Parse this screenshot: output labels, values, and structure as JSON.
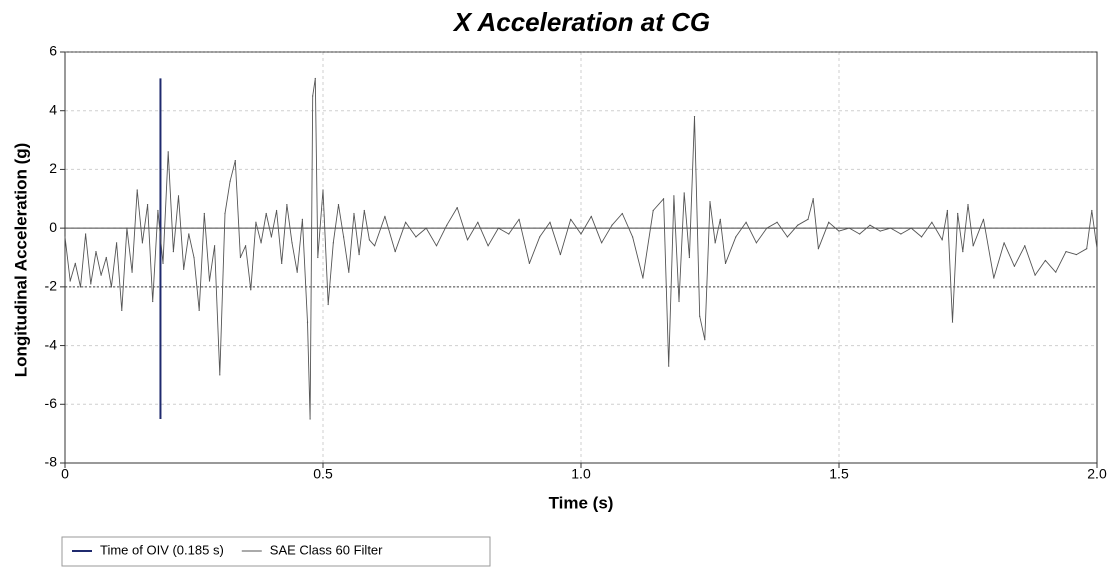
{
  "chart_data": {
    "type": "line",
    "title": "X Acceleration at CG",
    "xlabel": "Time (s)",
    "ylabel": "Longitudinal Acceleration (g)",
    "xlim": [
      0,
      2.0
    ],
    "ylim": [
      -8,
      6
    ],
    "x_ticks": [
      0,
      0.5,
      1.0,
      1.5,
      2.0
    ],
    "x_tick_labels": [
      "0",
      "0.5",
      "1.0",
      "1.5",
      "2.0"
    ],
    "y_ticks": [
      -8,
      -6,
      -4,
      -2,
      0,
      2,
      4,
      6
    ],
    "y_tick_labels": [
      "-8",
      "-6",
      "-4",
      "-2",
      "0",
      "2",
      "4",
      "6"
    ],
    "grid": true,
    "reference_lines": [
      0,
      -2
    ],
    "legend_position": "bottom-left",
    "series": [
      {
        "name": "Time of OIV (0.185 s)",
        "color": "#1f2a6e",
        "type": "vertical-line",
        "x": [
          0.185,
          0.185
        ],
        "y": [
          -6.5,
          5.1
        ]
      },
      {
        "name": "SAE Class 60 Filter",
        "color": "#555555",
        "type": "line",
        "x": [
          0.0,
          0.01,
          0.02,
          0.03,
          0.04,
          0.05,
          0.06,
          0.07,
          0.08,
          0.09,
          0.1,
          0.11,
          0.12,
          0.13,
          0.14,
          0.15,
          0.16,
          0.17,
          0.18,
          0.19,
          0.2,
          0.21,
          0.22,
          0.23,
          0.24,
          0.25,
          0.26,
          0.27,
          0.28,
          0.29,
          0.3,
          0.31,
          0.32,
          0.33,
          0.34,
          0.35,
          0.36,
          0.37,
          0.38,
          0.39,
          0.4,
          0.41,
          0.42,
          0.43,
          0.44,
          0.45,
          0.46,
          0.47,
          0.475,
          0.48,
          0.485,
          0.49,
          0.5,
          0.51,
          0.52,
          0.53,
          0.54,
          0.55,
          0.56,
          0.57,
          0.58,
          0.59,
          0.6,
          0.62,
          0.64,
          0.66,
          0.68,
          0.7,
          0.72,
          0.74,
          0.76,
          0.78,
          0.8,
          0.82,
          0.84,
          0.86,
          0.88,
          0.9,
          0.92,
          0.94,
          0.96,
          0.98,
          1.0,
          1.02,
          1.04,
          1.06,
          1.08,
          1.1,
          1.12,
          1.14,
          1.16,
          1.17,
          1.18,
          1.19,
          1.2,
          1.21,
          1.22,
          1.23,
          1.24,
          1.25,
          1.26,
          1.27,
          1.28,
          1.3,
          1.32,
          1.34,
          1.36,
          1.38,
          1.4,
          1.42,
          1.44,
          1.45,
          1.46,
          1.48,
          1.5,
          1.52,
          1.54,
          1.56,
          1.58,
          1.6,
          1.62,
          1.64,
          1.66,
          1.68,
          1.7,
          1.71,
          1.72,
          1.73,
          1.74,
          1.75,
          1.76,
          1.78,
          1.8,
          1.82,
          1.84,
          1.86,
          1.88,
          1.9,
          1.92,
          1.94,
          1.96,
          1.98,
          1.99,
          2.0
        ],
        "y": [
          -0.3,
          -1.8,
          -1.2,
          -2.0,
          -0.2,
          -1.9,
          -0.8,
          -1.6,
          -1.0,
          -2.0,
          -0.5,
          -2.8,
          0.0,
          -1.5,
          1.3,
          -0.5,
          0.8,
          -2.5,
          0.6,
          -1.2,
          2.6,
          -0.8,
          1.1,
          -1.4,
          -0.2,
          -1.0,
          -2.8,
          0.5,
          -1.8,
          -0.6,
          -5.0,
          0.5,
          1.6,
          2.3,
          -1.0,
          -0.6,
          -2.1,
          0.2,
          -0.5,
          0.5,
          -0.3,
          0.6,
          -1.2,
          0.8,
          -0.5,
          -1.5,
          0.3,
          -3.2,
          -6.5,
          4.5,
          5.1,
          -1.0,
          1.3,
          -2.6,
          -0.5,
          0.8,
          -0.3,
          -1.5,
          0.5,
          -0.9,
          0.6,
          -0.4,
          -0.6,
          0.4,
          -0.8,
          0.2,
          -0.3,
          0.0,
          -0.6,
          0.1,
          0.7,
          -0.4,
          0.2,
          -0.6,
          0.0,
          -0.2,
          0.3,
          -1.2,
          -0.3,
          0.2,
          -0.9,
          0.3,
          -0.2,
          0.4,
          -0.5,
          0.1,
          0.5,
          -0.3,
          -1.7,
          0.6,
          1.0,
          -4.7,
          1.1,
          -2.5,
          1.2,
          -1.0,
          3.8,
          -3.0,
          -3.8,
          0.9,
          -0.5,
          0.3,
          -1.2,
          -0.3,
          0.2,
          -0.5,
          0.0,
          0.2,
          -0.3,
          0.1,
          0.3,
          1.0,
          -0.7,
          0.2,
          -0.1,
          0.0,
          -0.2,
          0.1,
          -0.1,
          0.0,
          -0.2,
          0.0,
          -0.3,
          0.2,
          -0.4,
          0.6,
          -3.2,
          0.5,
          -0.8,
          0.8,
          -0.6,
          0.3,
          -1.7,
          -0.5,
          -1.3,
          -0.6,
          -1.6,
          -1.1,
          -1.5,
          -0.8,
          -0.9,
          -0.7,
          0.6,
          -0.7
        ]
      }
    ]
  }
}
